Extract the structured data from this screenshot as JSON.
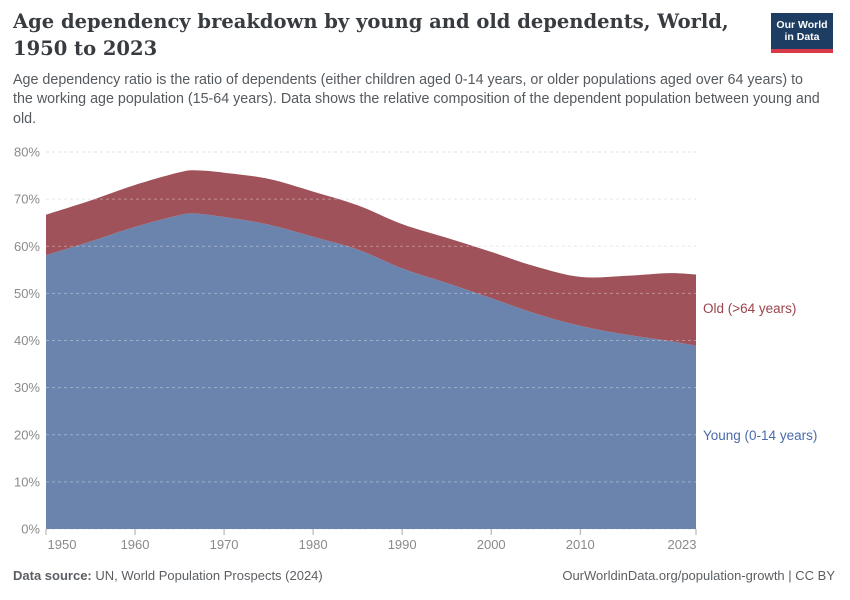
{
  "header": {
    "title": "Age dependency breakdown by young and old dependents, World, 1950 to 2023",
    "subtitle": "Age dependency ratio is the ratio of dependents (either children aged 0-14 years, or older populations aged over 64 years) to the working age population (15-64 years). Data shows the relative composition of the dependent population between young and old.",
    "logo": {
      "line1": "Our World",
      "line2": "in Data"
    }
  },
  "chart_data": {
    "type": "area",
    "stacked": true,
    "title": "Age dependency breakdown by young and old dependents, World, 1950 to 2023",
    "x": [
      1950,
      1955,
      1960,
      1965,
      1967,
      1970,
      1975,
      1980,
      1985,
      1990,
      1995,
      2000,
      2005,
      2010,
      2015,
      2020,
      2023
    ],
    "series": [
      {
        "name": "Young (0-14 years)",
        "color": "#6b84ae",
        "label_color": "#4a6bab",
        "values": [
          58.1,
          61.0,
          64.1,
          66.6,
          66.9,
          66.2,
          64.6,
          62.0,
          59.3,
          55.3,
          52.2,
          49.0,
          45.7,
          43.1,
          41.3,
          39.9,
          38.9
        ]
      },
      {
        "name": "Old (>64 years)",
        "color": "#a0525a",
        "label_color": "#9b444c",
        "values": [
          8.6,
          8.7,
          8.9,
          9.1,
          9.2,
          9.4,
          9.7,
          9.6,
          9.4,
          9.4,
          9.6,
          9.8,
          10.0,
          10.4,
          12.4,
          14.4,
          15.1
        ]
      }
    ],
    "ylim": [
      0,
      80
    ],
    "ytick_step": 10,
    "ytick_suffix": "%",
    "xticks": [
      1950,
      1960,
      1970,
      1980,
      1990,
      2000,
      2010,
      2023
    ],
    "xlim": [
      1950,
      2023
    ],
    "grid": "horizontal-dashed",
    "legend": "inline-right-labels",
    "xlabel": "",
    "ylabel": ""
  },
  "footer": {
    "source_label": "Data source:",
    "source_text": "UN, World Population Prospects (2024)",
    "credit": "OurWorldinData.org/population-growth | CC BY"
  },
  "colors": {
    "young_area": "#6b84ae",
    "old_area": "#a0525a",
    "grid": "#e0e0e0",
    "axis_text": "#8a8a8a",
    "tick_mark": "#a8a8a8",
    "logo_bg": "#1d3d63",
    "logo_stripe": "#d93a4a"
  }
}
